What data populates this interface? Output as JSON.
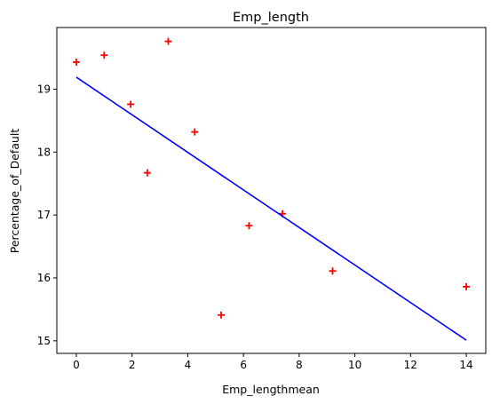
{
  "chart_data": {
    "type": "scatter",
    "title": "Emp_length",
    "xlabel": "Emp_lengthmean",
    "ylabel": "Percentage_of_Default",
    "xlim": [
      -0.7,
      14.7
    ],
    "ylim": [
      14.8,
      19.98
    ],
    "x_ticks": [
      0,
      2,
      4,
      6,
      8,
      10,
      12,
      14
    ],
    "y_ticks": [
      15,
      16,
      17,
      18,
      19
    ],
    "grid": false,
    "series": [
      {
        "type": "scatter",
        "marker": "plus",
        "color": "#ff0000",
        "points": [
          {
            "x": 0.0,
            "y": 19.43
          },
          {
            "x": 1.0,
            "y": 19.54
          },
          {
            "x": 1.95,
            "y": 18.76
          },
          {
            "x": 2.55,
            "y": 17.67
          },
          {
            "x": 3.3,
            "y": 19.76
          },
          {
            "x": 4.25,
            "y": 18.32
          },
          {
            "x": 5.2,
            "y": 15.41
          },
          {
            "x": 6.2,
            "y": 16.83
          },
          {
            "x": 7.4,
            "y": 17.02
          },
          {
            "x": 9.2,
            "y": 16.11
          },
          {
            "x": 14.0,
            "y": 15.86
          }
        ]
      },
      {
        "type": "line",
        "color": "#0000ff",
        "points": [
          {
            "x": 0.0,
            "y": 19.19
          },
          {
            "x": 14.0,
            "y": 15.01
          }
        ]
      }
    ]
  }
}
